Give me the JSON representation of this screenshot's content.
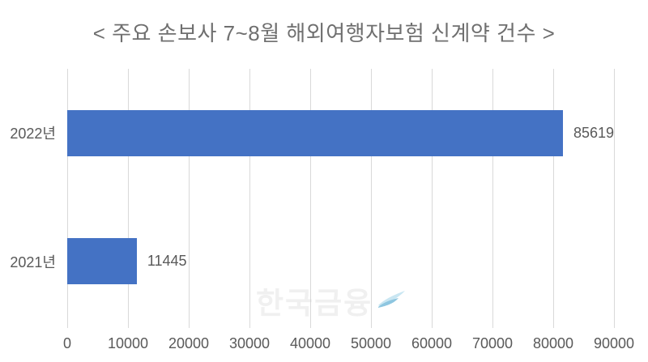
{
  "title": "< 주요 손보사 7~8월 해외여행자보험 신계약 건수 >",
  "watermark": {
    "text": "한국금융"
  },
  "colors": {
    "bar": "#4472C4",
    "gridline": "#d9d9d9",
    "label": "#595959",
    "title": "#6f6f6f",
    "swoosh_dark": "#8ec6e0",
    "swoosh_light": "#c9e6f2"
  },
  "chart_data": {
    "type": "bar",
    "orientation": "horizontal",
    "title": "< 주요 손보사 7~8월 해외여행자보험 신계약 건수 >",
    "categories": [
      "2022년",
      "2021년"
    ],
    "values": [
      85619,
      11445
    ],
    "xlabel": "",
    "ylabel": "",
    "xlim": [
      0,
      90000
    ],
    "xticks": [
      0,
      10000,
      20000,
      30000,
      40000,
      50000,
      60000,
      70000,
      80000,
      90000
    ],
    "grid": true,
    "data_labels": true,
    "legend": false
  }
}
